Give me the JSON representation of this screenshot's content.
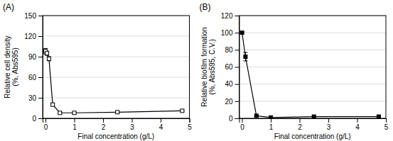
{
  "chart_data": [
    {
      "type": "line",
      "title": "(A)",
      "xlabel": "Final concentration (g/L)",
      "ylabel": "Relative cell density\n(%, Abs595)",
      "x": [
        0.0,
        0.05,
        0.12,
        0.25,
        0.5,
        1.0,
        2.5,
        4.75
      ],
      "values": [
        98,
        95,
        87,
        20,
        8,
        8,
        9,
        11
      ],
      "yerr": [
        4,
        3,
        3,
        2,
        1,
        1,
        1,
        1
      ],
      "xlim": [
        -0.1,
        5
      ],
      "xticks": [
        0,
        1,
        2,
        3,
        4,
        5
      ],
      "ylim": [
        0,
        150
      ],
      "yticks": [
        0,
        30,
        60,
        90,
        120,
        150
      ],
      "color": "black",
      "marker": "open-square",
      "grid": "y"
    },
    {
      "type": "line",
      "title": "(B)",
      "xlabel": "Final concentration (g/L)",
      "ylabel": "Relative biofilm formation\n(%, Abs595, C.V.)",
      "x": [
        0.0,
        0.12,
        0.5,
        1.0,
        2.5,
        4.75
      ],
      "values": [
        100,
        72,
        3,
        1,
        2,
        2
      ],
      "yerr": [
        1,
        5,
        1,
        0.5,
        0.5,
        0.5
      ],
      "xlim": [
        -0.1,
        5
      ],
      "xticks": [
        0,
        1,
        2,
        3,
        4,
        5
      ],
      "ylim": [
        0,
        120
      ],
      "yticks": [
        0,
        20,
        40,
        60,
        80,
        100,
        120
      ],
      "color": "black",
      "marker": "filled-square",
      "grid": "y"
    }
  ]
}
